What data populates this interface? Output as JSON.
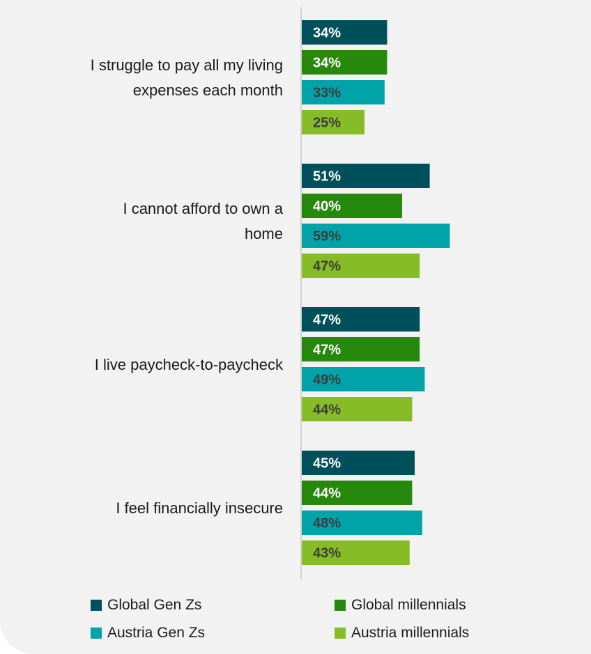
{
  "chart_data": {
    "type": "bar",
    "orientation": "horizontal",
    "categories": [
      "I struggle to pay all my living expenses each month",
      "I cannot afford to own a home",
      "I live paycheck-to-paycheck",
      "I feel financially insecure"
    ],
    "series": [
      {
        "name": "Global Gen Zs",
        "color": "#00505c",
        "label_color": "#ffffff",
        "values": [
          34,
          51,
          47,
          45
        ]
      },
      {
        "name": "Global millennials",
        "color": "#26890d",
        "label_color": "#ffffff",
        "values": [
          34,
          40,
          47,
          44
        ]
      },
      {
        "name": "Austria Gen Zs",
        "color": "#00a3a8",
        "label_color": "#3c3c3c",
        "values": [
          33,
          59,
          49,
          48
        ]
      },
      {
        "name": "Austria millennials",
        "color": "#86bc25",
        "label_color": "#3c3c3c",
        "values": [
          25,
          47,
          44,
          43
        ]
      }
    ],
    "value_suffix": "%",
    "xlim": [
      0,
      100
    ],
    "grid": false,
    "legend_position": "bottom"
  }
}
